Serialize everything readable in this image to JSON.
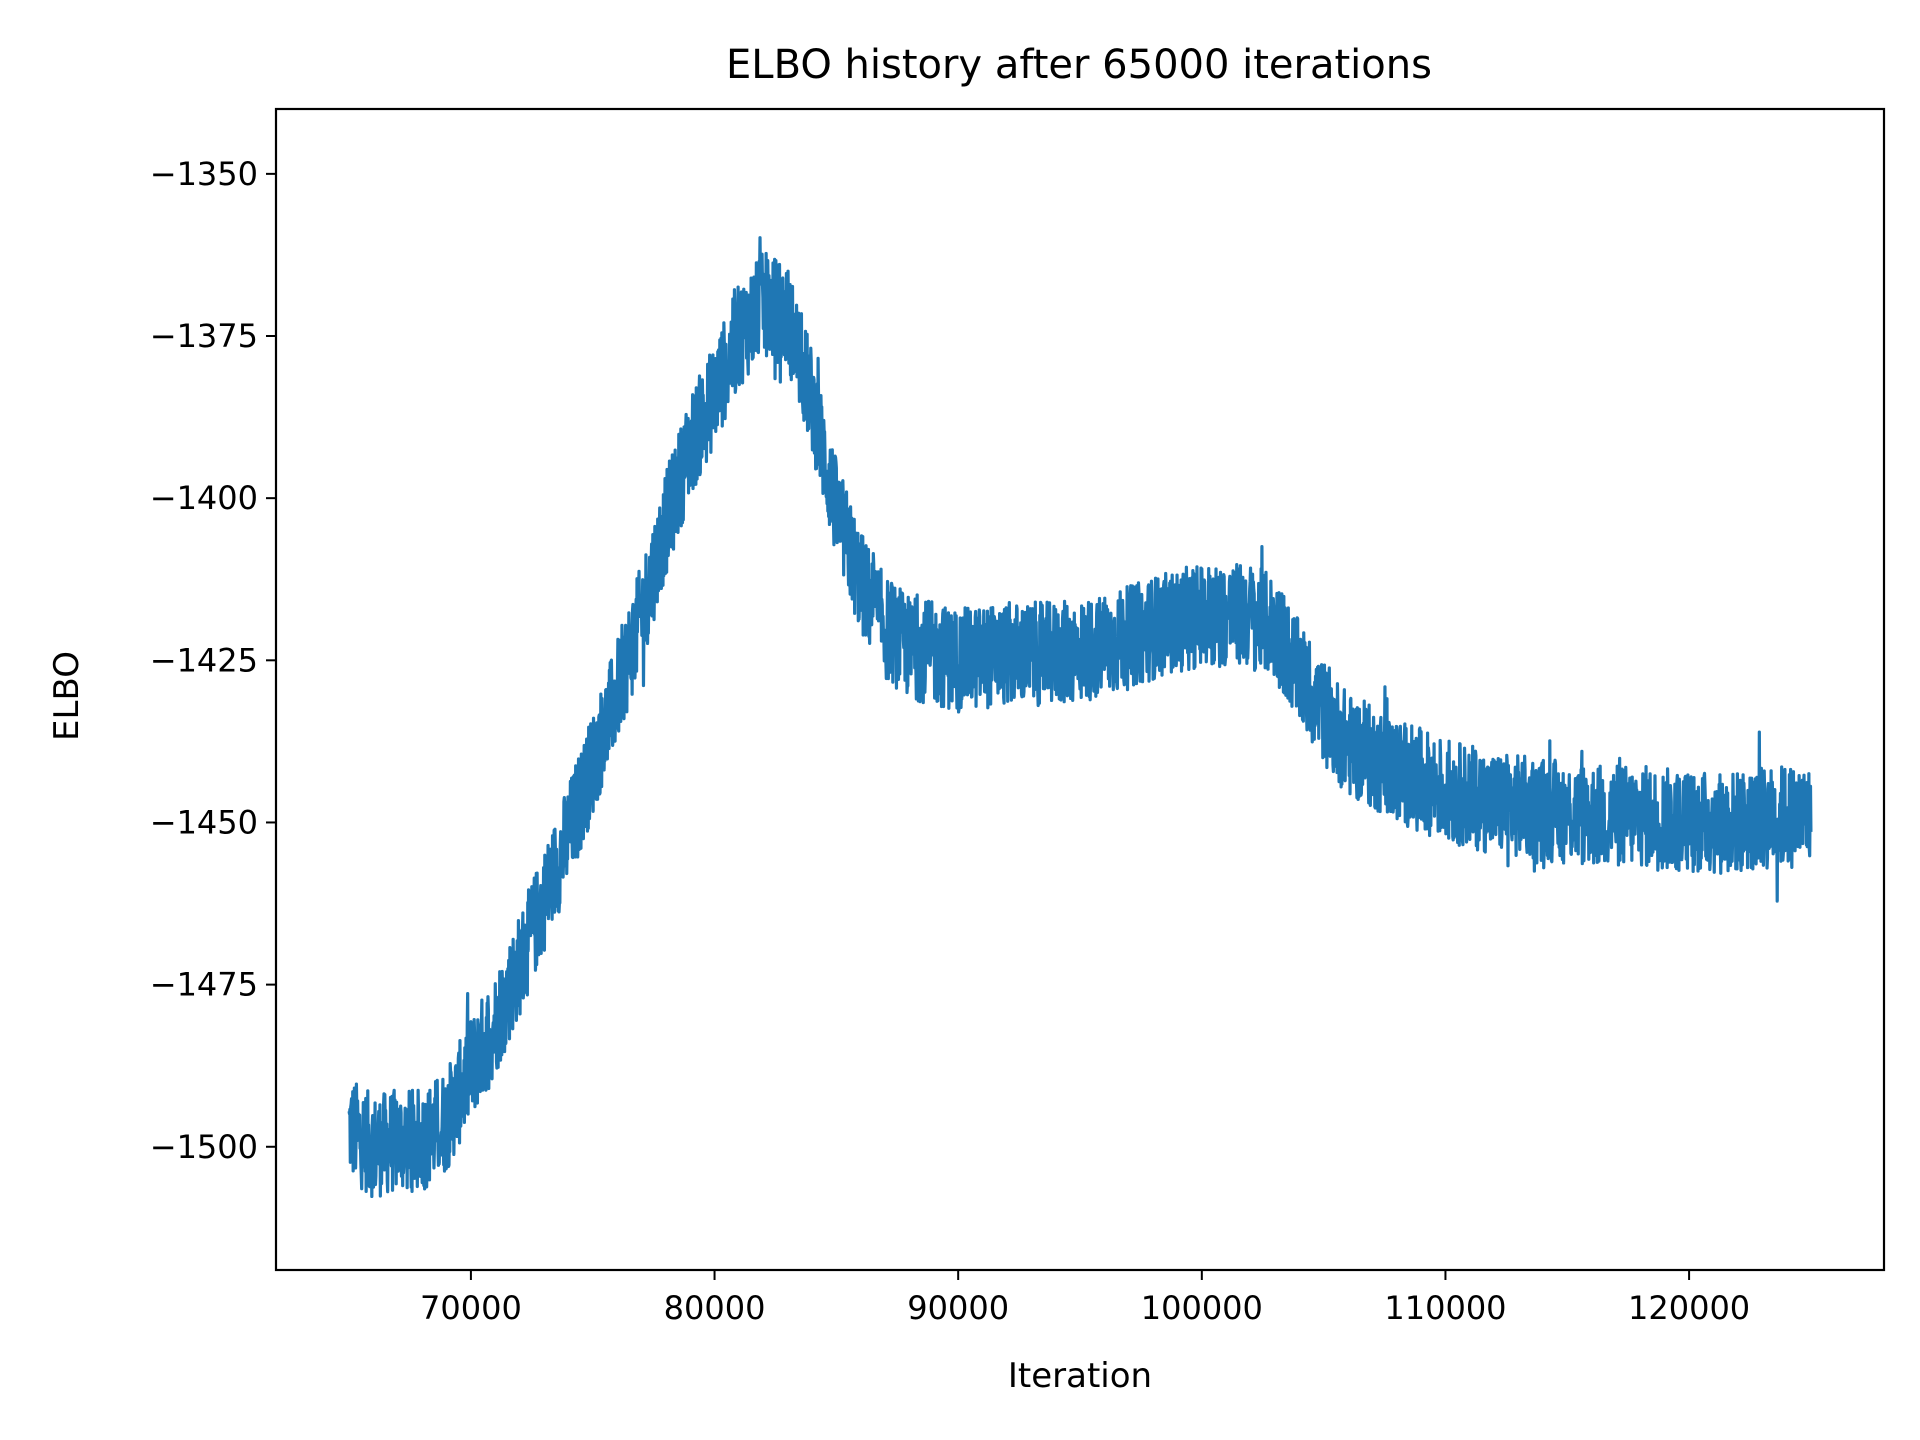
{
  "chart_data": {
    "type": "line",
    "title": "ELBO history after 65000 iterations",
    "xlabel": "Iteration",
    "ylabel": "ELBO",
    "xlim": [
      62000,
      128000
    ],
    "ylim": [
      -1519,
      -1340
    ],
    "x_ticks": [
      70000,
      80000,
      90000,
      100000,
      110000,
      120000
    ],
    "x_tick_labels": [
      "70000",
      "80000",
      "90000",
      "100000",
      "110000",
      "120000"
    ],
    "y_ticks": [
      -1350,
      -1375,
      -1400,
      -1425,
      -1450,
      -1475,
      -1500
    ],
    "y_tick_labels": [
      "−1350",
      "−1375",
      "−1400",
      "−1425",
      "−1450",
      "−1475",
      "−1500"
    ],
    "grid": false,
    "legend": "none",
    "line_color": "#1f77b4",
    "series": [
      {
        "x_start": 65000,
        "x_end": 125000,
        "trend": {
          "x": [
            65000,
            66000,
            67000,
            68000,
            69000,
            70000,
            71000,
            72000,
            73000,
            74000,
            75000,
            76000,
            77000,
            78000,
            79000,
            80000,
            81000,
            82000,
            83000,
            84000,
            85000,
            86000,
            87000,
            88000,
            89000,
            90000,
            92000,
            94000,
            96000,
            98000,
            100000,
            102000,
            103000,
            104000,
            105000,
            106000,
            108000,
            110000,
            112000,
            114000,
            116000,
            118000,
            120000,
            122000,
            124000,
            125000
          ],
          "y": [
            -1497,
            -1500,
            -1499,
            -1499,
            -1496,
            -1488,
            -1481,
            -1472,
            -1462,
            -1452,
            -1441,
            -1430,
            -1418,
            -1404,
            -1392,
            -1384,
            -1375,
            -1370,
            -1372,
            -1385,
            -1402,
            -1413,
            -1420,
            -1423,
            -1424,
            -1425,
            -1424,
            -1424,
            -1423,
            -1420,
            -1418,
            -1418,
            -1420,
            -1427,
            -1433,
            -1438,
            -1442,
            -1445,
            -1447,
            -1448,
            -1449,
            -1449,
            -1450,
            -1450,
            -1449,
            -1449
          ]
        },
        "noise_amplitude": 8
      }
    ]
  }
}
